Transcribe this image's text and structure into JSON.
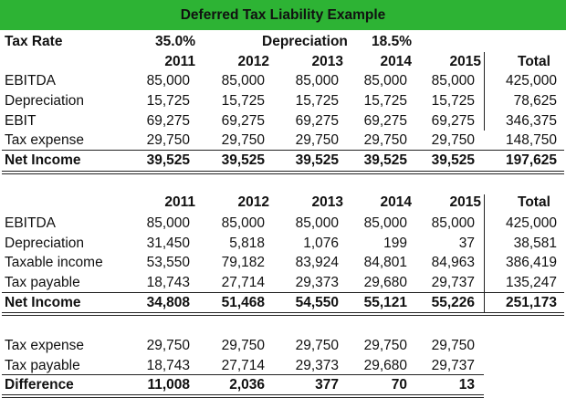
{
  "title": "Deferred Tax Liability Example",
  "params": {
    "tax_rate_label": "Tax Rate",
    "tax_rate": "35.0%",
    "depreciation_label": "Depreciation",
    "depreciation_rate": "18.5%"
  },
  "colors": {
    "header_bg": "#2db334"
  },
  "tables": [
    {
      "headers": [
        "2011",
        "2012",
        "2013",
        "2014",
        "2015",
        "Total"
      ],
      "rows": [
        {
          "label": "EBITDA",
          "values": [
            "85,000",
            "85,000",
            "85,000",
            "85,000",
            "85,000",
            "425,000"
          ]
        },
        {
          "label": "Depreciation",
          "values": [
            "15,725",
            "15,725",
            "15,725",
            "15,725",
            "15,725",
            "78,625"
          ]
        },
        {
          "label": "EBIT",
          "values": [
            "69,275",
            "69,275",
            "69,275",
            "69,275",
            "69,275",
            "346,375"
          ]
        },
        {
          "label": "Tax expense",
          "values": [
            "29,750",
            "29,750",
            "29,750",
            "29,750",
            "29,750",
            "148,750"
          ]
        },
        {
          "label": "Net Income",
          "values": [
            "39,525",
            "39,525",
            "39,525",
            "39,525",
            "39,525",
            "197,625"
          ],
          "bold": true
        }
      ]
    },
    {
      "headers": [
        "2011",
        "2012",
        "2013",
        "2014",
        "2015",
        "Total"
      ],
      "rows": [
        {
          "label": "EBITDA",
          "values": [
            "85,000",
            "85,000",
            "85,000",
            "85,000",
            "85,000",
            "425,000"
          ]
        },
        {
          "label": "Depreciation",
          "values": [
            "31,450",
            "5,818",
            "1,076",
            "199",
            "37",
            "38,581"
          ]
        },
        {
          "label": "Taxable income",
          "values": [
            "53,550",
            "79,182",
            "83,924",
            "84,801",
            "84,963",
            "386,419"
          ]
        },
        {
          "label": "Tax payable",
          "values": [
            "18,743",
            "27,714",
            "29,373",
            "29,680",
            "29,737",
            "135,247"
          ]
        },
        {
          "label": "Net Income",
          "values": [
            "34,808",
            "51,468",
            "54,550",
            "55,121",
            "55,226",
            "251,173"
          ],
          "bold": true
        }
      ]
    },
    {
      "headers": [],
      "rows": [
        {
          "label": "Tax expense",
          "values": [
            "29,750",
            "29,750",
            "29,750",
            "29,750",
            "29,750"
          ]
        },
        {
          "label": "Tax payable",
          "values": [
            "18,743",
            "27,714",
            "29,373",
            "29,680",
            "29,737"
          ]
        },
        {
          "label": "Difference",
          "values": [
            "11,008",
            "2,036",
            "377",
            "70",
            "13"
          ],
          "bold": true
        }
      ]
    }
  ]
}
